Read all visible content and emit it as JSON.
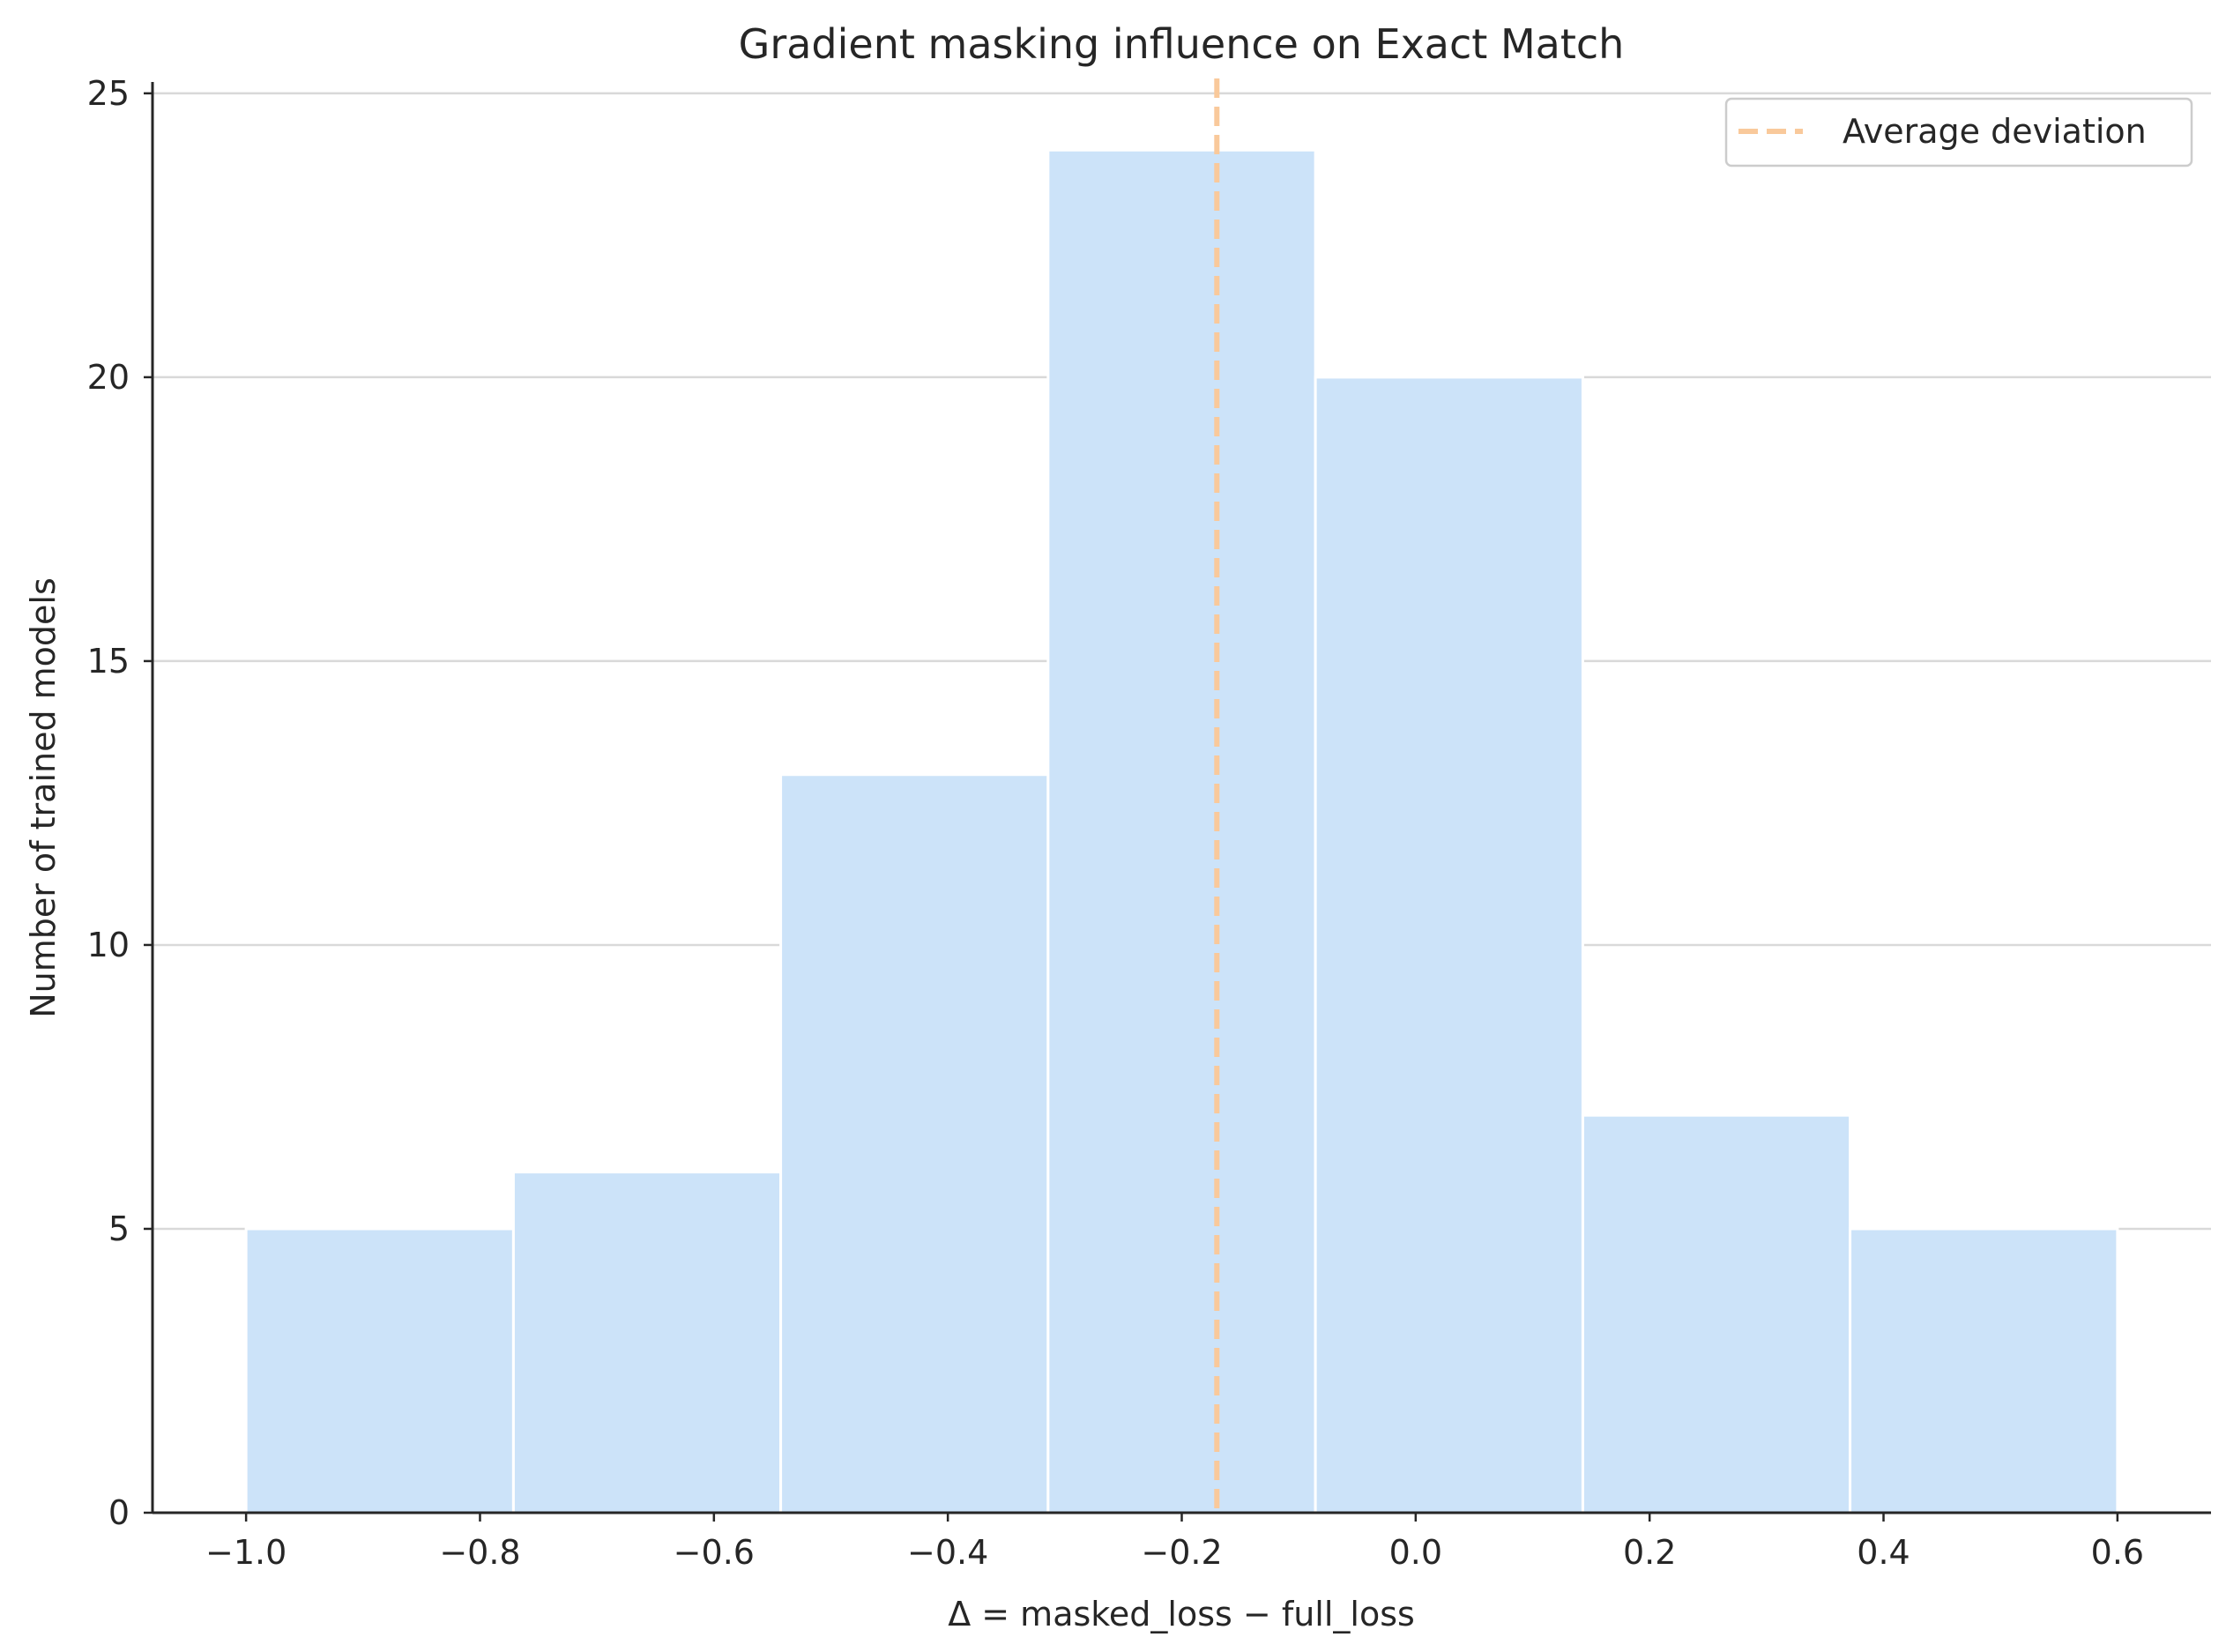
{
  "chart_data": {
    "type": "bar",
    "subtype": "histogram",
    "title": "Gradient masking influence on Exact Match",
    "xlabel": "Δ = masked_loss − full_loss",
    "ylabel": "Number of trained models",
    "bin_edges": [
      -1.0,
      -0.7714,
      -0.5429,
      -0.3143,
      -0.0857,
      0.1429,
      0.3714,
      0.6
    ],
    "values": [
      5,
      6,
      13,
      24,
      20,
      7,
      5
    ],
    "bar_color": "#cce3f9",
    "bar_edge_color": "#ffffff",
    "xlim": [
      -1.08,
      0.68
    ],
    "ylim": [
      0,
      25.2
    ],
    "xticks": [
      -1.0,
      -0.8,
      -0.6,
      -0.4,
      -0.2,
      0.0,
      0.2,
      0.4,
      0.6
    ],
    "xtick_labels": [
      "−1.0",
      "−0.8",
      "−0.6",
      "−0.4",
      "−0.2",
      "0.0",
      "0.2",
      "0.4",
      "0.6"
    ],
    "yticks": [
      0,
      5,
      10,
      15,
      20,
      25
    ],
    "ytick_labels": [
      "0",
      "5",
      "10",
      "15",
      "20",
      "25"
    ],
    "grid": "horizontal",
    "grid_color": "#d9d9d9",
    "reference_line": {
      "name": "Average deviation",
      "x": -0.17,
      "style": "dashed",
      "color": "#f9c99b"
    },
    "legend": {
      "position": "top-right",
      "entries": [
        "Average deviation"
      ]
    }
  }
}
